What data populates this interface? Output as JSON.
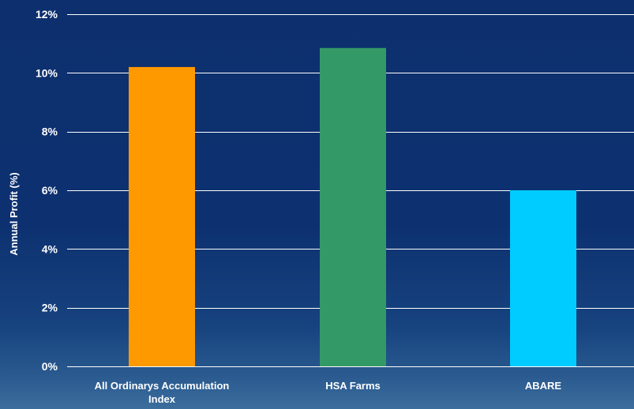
{
  "chart_data": {
    "type": "bar",
    "title": "",
    "xlabel": "",
    "ylabel": "Annual Profit (%)",
    "ylim": [
      0,
      12
    ],
    "y_ticks": [
      0,
      2,
      4,
      6,
      8,
      10,
      12
    ],
    "y_tick_labels": [
      "0%",
      "2%",
      "4%",
      "6%",
      "8%",
      "10%",
      "12%"
    ],
    "grid": true,
    "categories": [
      [
        "All Ordinarys Accumulation",
        "Index"
      ],
      [
        "HSA Farms"
      ],
      [
        "ABARE"
      ]
    ],
    "values": [
      10.2,
      10.85,
      6.0
    ],
    "colors": [
      "#ff9900",
      "#339966",
      "#00ccff"
    ]
  }
}
